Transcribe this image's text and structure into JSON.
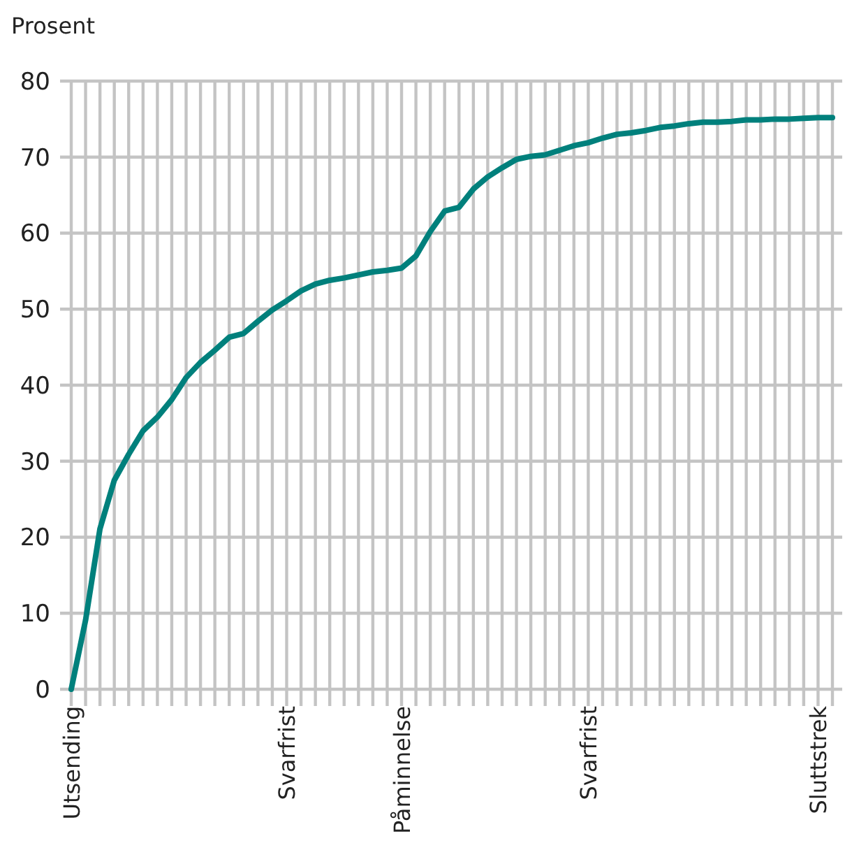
{
  "chart_data": {
    "type": "line",
    "ylabel": "Prosent",
    "categories": [
      "Utsending",
      null,
      null,
      null,
      null,
      null,
      null,
      null,
      null,
      null,
      null,
      null,
      null,
      null,
      null,
      "Svarfrist",
      null,
      null,
      null,
      null,
      null,
      null,
      null,
      "Påminnelse",
      null,
      null,
      null,
      null,
      null,
      null,
      null,
      null,
      null,
      null,
      null,
      null,
      "Svarfrist",
      null,
      null,
      null,
      null,
      null,
      null,
      null,
      null,
      null,
      null,
      null,
      null,
      null,
      null,
      null,
      "Sluttstrek",
      null
    ],
    "series": [
      {
        "color": "#00807c",
        "values": [
          0,
          9.1,
          21.1,
          27.5,
          30.9,
          34.0,
          35.8,
          38.1,
          41.0,
          43.0,
          44.6,
          46.3,
          46.8,
          48.4,
          49.9,
          51.1,
          52.4,
          53.3,
          53.8,
          54.1,
          54.5,
          54.9,
          55.1,
          55.4,
          57.0,
          60.2,
          62.9,
          63.4,
          65.8,
          67.4,
          68.6,
          69.7,
          70.1,
          70.3,
          70.9,
          71.5,
          71.9,
          72.5,
          73.0,
          73.2,
          73.5,
          73.9,
          74.1,
          74.4,
          74.6,
          74.6,
          74.7,
          74.9,
          74.9,
          75.0,
          75.0,
          75.1,
          75.2,
          75.2
        ]
      }
    ],
    "ylim": [
      0,
      80
    ],
    "yticks": [
      0,
      10,
      20,
      30,
      40,
      50,
      60,
      70,
      80
    ],
    "grid": true,
    "marker": "none",
    "line_style": "solid"
  }
}
